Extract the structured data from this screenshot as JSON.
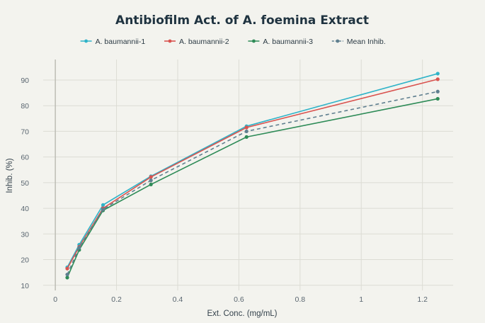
{
  "chart_data": {
    "type": "line",
    "title": "Antibiofilm Act. of A. foemina Extract",
    "xlabel": "Ext. Conc. (mg/mL)",
    "ylabel": "Inhib. (%)",
    "xlim": [
      -0.02,
      1.32
    ],
    "ylim": [
      8,
      98
    ],
    "xticks": [
      0,
      0.2,
      0.4,
      0.6,
      0.8,
      1,
      1.2
    ],
    "yticks": [
      10,
      20,
      30,
      40,
      50,
      60,
      70,
      80,
      90
    ],
    "grid": true,
    "legend_position": "top-center",
    "x": [
      0.039,
      0.078,
      0.156,
      0.3125,
      0.625,
      1.25
    ],
    "series": [
      {
        "name": "A. baumannii-1",
        "color": "#2fb3c8",
        "dash": false,
        "values": [
          17.0,
          25.8,
          41.3,
          52.5,
          72.0,
          92.5
        ]
      },
      {
        "name": "A. baumannii-2",
        "color": "#d9534f",
        "dash": false,
        "values": [
          16.5,
          25.0,
          40.0,
          52.2,
          71.5,
          90.3
        ]
      },
      {
        "name": "A. baumannii-3",
        "color": "#2e8b57",
        "dash": false,
        "values": [
          13.0,
          23.8,
          39.2,
          49.3,
          67.8,
          82.7
        ]
      },
      {
        "name": "Mean Inhib.",
        "color": "#5f7f8f",
        "dash": true,
        "values": [
          14.2,
          24.7,
          39.6,
          50.9,
          70.0,
          85.5
        ]
      }
    ]
  }
}
